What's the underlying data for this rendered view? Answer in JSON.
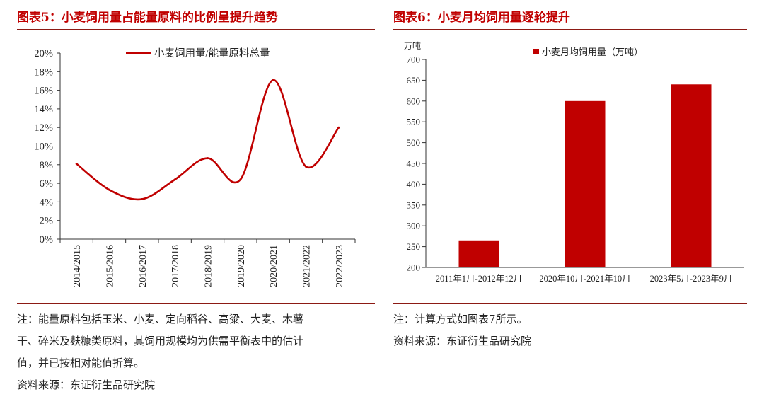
{
  "left": {
    "title": "图表5：小麦饲用量占能量原料的比例呈提升趋势",
    "note_lines": [
      "注：能量原料包括玉米、小麦、定向稻谷、高粱、大麦、木薯",
      "干、碎米及麸糠类原料，其饲用规模均为供需平衡表中的估计",
      "值，并已按相对能值折算。"
    ],
    "source": "资料来源：东证衍生品研究院"
  },
  "right": {
    "title": "图表6：小麦月均饲用量逐轮提升",
    "note": "注：计算方式如图表7所示。",
    "source": "资料来源：东证衍生品研究院"
  },
  "chart_data": [
    {
      "type": "line",
      "title": "",
      "categories": [
        "2014/2015",
        "2015/2016",
        "2016/2017",
        "2017/2018",
        "2018/2019",
        "2019/2020",
        "2020/2021",
        "2021/2022",
        "2022/2023"
      ],
      "series": [
        {
          "name": "小麦饲用量/能量原料总量",
          "values": [
            0.081,
            0.053,
            0.043,
            0.064,
            0.087,
            0.064,
            0.171,
            0.078,
            0.12
          ]
        }
      ],
      "y_ticks": [
        "0%",
        "2%",
        "4%",
        "6%",
        "8%",
        "10%",
        "12%",
        "14%",
        "16%",
        "18%",
        "20%"
      ],
      "ylim": [
        0,
        0.2
      ],
      "legend_position": "top",
      "color": "#c00000",
      "smooth": true
    },
    {
      "type": "bar",
      "title": "",
      "categories": [
        "2011年1月-2012年12月",
        "2020年10月-2021年10月",
        "2023年5月-2023年9月"
      ],
      "series": [
        {
          "name": "小麦月均饲用量（万吨）",
          "values": [
            265,
            600,
            640
          ]
        }
      ],
      "ylabel": "万吨",
      "y_ticks": [
        "200",
        "250",
        "300",
        "350",
        "400",
        "450",
        "500",
        "550",
        "600",
        "650",
        "700"
      ],
      "ylim": [
        200,
        700
      ],
      "legend_position": "top",
      "color": "#c00000"
    }
  ]
}
